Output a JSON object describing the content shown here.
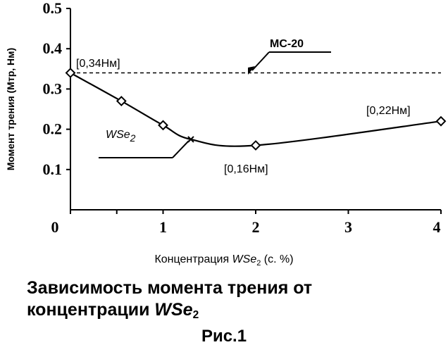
{
  "chart_data": {
    "type": "line",
    "x_scale": "categorical-positions",
    "x_ticks": [
      {
        "value": 0,
        "label": "0"
      },
      {
        "value": 0.5,
        "label": "1"
      },
      {
        "value": 1,
        "label": "1"
      },
      {
        "value": 2,
        "label": "2"
      },
      {
        "value": 3,
        "label": "3"
      },
      {
        "value": 4,
        "label": "4"
      }
    ],
    "ylim": [
      0,
      0.5
    ],
    "y_ticks": [
      "0.1",
      "0.2",
      "0.3",
      "0.4",
      "0.5"
    ],
    "ylabel": "Момент трения (Мтр, Нм)",
    "xlabel_prefix": "Концентрация ",
    "xlabel_italic": "WSe",
    "xlabel_sub": "2",
    "xlabel_suffix": " (с. %)",
    "series": [
      {
        "name": "WSe2",
        "label_main": "WSe",
        "label_sub": "2",
        "points": [
          {
            "x": 0.0,
            "y": 0.34
          },
          {
            "x": 0.55,
            "y": 0.27
          },
          {
            "x": 1.0,
            "y": 0.21
          },
          {
            "x": 1.3,
            "y": 0.175
          },
          {
            "x": 2.0,
            "y": 0.16
          },
          {
            "x": 4.0,
            "y": 0.22
          }
        ]
      },
      {
        "name": "МС-20",
        "constant_y": 0.34
      }
    ],
    "annotations": [
      "[0,34Нм]",
      "[0,22Нм]",
      "[0,16Нм]",
      "МС-20"
    ]
  },
  "caption": {
    "line1": "Зависимость момента трения от",
    "line2_prefix": "концентрации ",
    "line2_italic": "WSe",
    "line2_sub": "2"
  },
  "figure_label": "Рис.1"
}
